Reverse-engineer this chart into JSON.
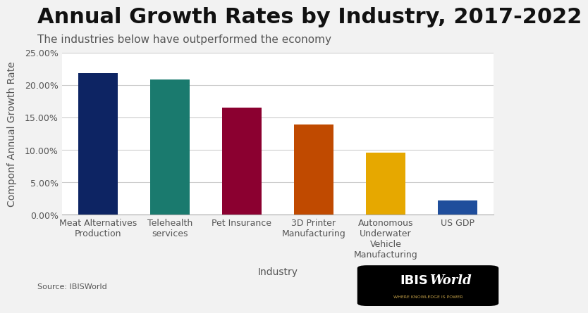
{
  "title": "Annual Growth Rates by Industry, 2017-2022",
  "subtitle": "The industries below have outperformed the economy",
  "source": "Source: IBISWorld",
  "xlabel": "Industry",
  "ylabel": "Componf Annual Growth Rate",
  "categories": [
    "Meat Alternatives\nProduction",
    "Telehealth\nservices",
    "Pet Insurance",
    "3D Printer\nManufacturing",
    "Autonomous\nUnderwater\nVehicle\nManufacturing",
    "US GDP"
  ],
  "values": [
    0.219,
    0.209,
    0.165,
    0.139,
    0.096,
    0.022
  ],
  "bar_colors": [
    "#0d2463",
    "#1a7a6e",
    "#8b0030",
    "#c04a00",
    "#e6a800",
    "#1f4e9c"
  ],
  "ylim": [
    0,
    0.25
  ],
  "yticks": [
    0.0,
    0.05,
    0.1,
    0.15,
    0.2,
    0.25
  ],
  "ytick_labels": [
    "0.00%",
    "5.00%",
    "10.00%",
    "15.00%",
    "20.00%",
    "25.00%"
  ],
  "background_color": "#f2f2f2",
  "plot_bg_color": "#ffffff",
  "title_fontsize": 22,
  "subtitle_fontsize": 11,
  "axis_label_fontsize": 10,
  "tick_fontsize": 9
}
